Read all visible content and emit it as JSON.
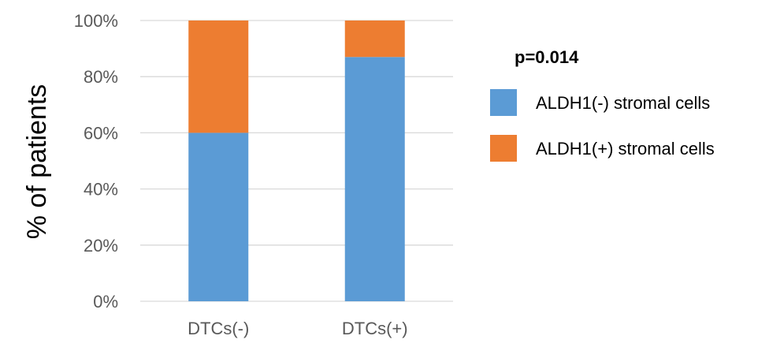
{
  "chart_data": {
    "type": "bar",
    "stacked": true,
    "categories": [
      "DTCs(-)",
      "DTCs(+)"
    ],
    "series": [
      {
        "name": "ALDH1(-) stromal cells",
        "values": [
          60,
          87
        ],
        "color": "#5B9BD5"
      },
      {
        "name": "ALDH1(+) stromal cells",
        "values": [
          40,
          13
        ],
        "color": "#ED7D31"
      }
    ],
    "ylabel": "% of patients",
    "ylim": [
      0,
      100
    ],
    "yticks": [
      "0%",
      "20%",
      "40%",
      "60%",
      "80%",
      "100%"
    ],
    "ytick_values": [
      0,
      20,
      40,
      60,
      80,
      100
    ],
    "grid": true,
    "annotation": "p=0.014",
    "legend_position": "right"
  }
}
